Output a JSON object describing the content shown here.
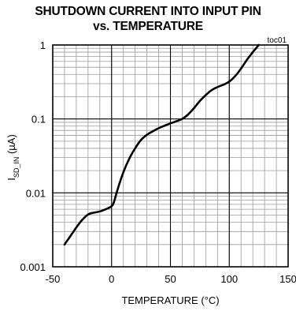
{
  "chart_data": {
    "type": "line",
    "title": "SHUTDOWN CURRENT INTO INPUT PIN",
    "subtitle": "vs. TEMPERATURE",
    "figure_id": "toc01",
    "xlabel": "TEMPERATURE (°C)",
    "ylabel": {
      "main": "I",
      "subscript": "SD_IN",
      "unit": " (µA)"
    },
    "xlim": [
      -50,
      150
    ],
    "ylim": [
      0.001,
      1
    ],
    "yscale": "log",
    "grid": true,
    "x_ticks": [
      -50,
      0,
      50,
      100,
      150
    ],
    "x_tick_labels": [
      "-50",
      "0",
      "50",
      "100",
      "150"
    ],
    "y_ticks": [
      0.001,
      0.01,
      0.1,
      1
    ],
    "y_tick_labels": [
      "0.001",
      "0.01",
      "0.1",
      "1"
    ],
    "series": [
      {
        "line_color": "#000000",
        "x": [
          -40,
          -35,
          -30,
          -25,
          -20,
          -15,
          -10,
          -5,
          0,
          2,
          5,
          10,
          15,
          20,
          25,
          30,
          35,
          40,
          45,
          50,
          55,
          60,
          65,
          70,
          75,
          80,
          85,
          90,
          95,
          100,
          105,
          110,
          115,
          120,
          125
        ],
        "y": [
          0.002,
          0.0026,
          0.0034,
          0.0043,
          0.0051,
          0.0054,
          0.0056,
          0.006,
          0.0066,
          0.0075,
          0.011,
          0.019,
          0.029,
          0.04,
          0.052,
          0.061,
          0.068,
          0.075,
          0.081,
          0.087,
          0.093,
          0.1,
          0.115,
          0.14,
          0.175,
          0.21,
          0.245,
          0.27,
          0.29,
          0.32,
          0.38,
          0.48,
          0.63,
          0.8,
          1.0
        ]
      }
    ]
  }
}
